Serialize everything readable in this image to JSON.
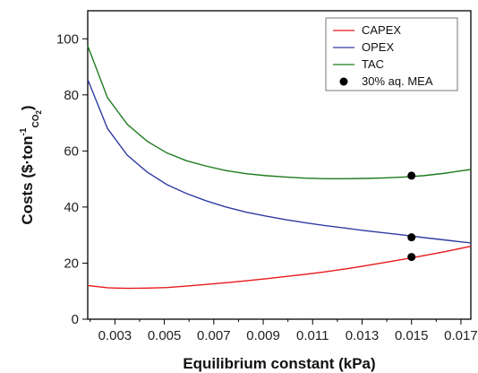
{
  "chart_data": {
    "type": "line",
    "xlabel": "Equilibrium constant (kPa)",
    "ylabel": "Costs ($·ton",
    "ylabel_sup": "-1",
    "ylabel_sub_main": "CO",
    "ylabel_sub_2": "2",
    "ylabel_close": ")",
    "xlim": [
      0.0019,
      0.0174
    ],
    "ylim": [
      0,
      110
    ],
    "xticks": [
      0.003,
      0.005,
      0.007,
      0.009,
      0.011,
      0.013,
      0.015,
      0.017
    ],
    "xtick_labels": [
      "0.003",
      "0.005",
      "0.007",
      "0.009",
      "0.011",
      "0.013",
      "0.015",
      "0.017"
    ],
    "yticks": [
      0,
      20,
      40,
      60,
      80,
      100
    ],
    "ytick_labels": [
      "0",
      "20",
      "40",
      "60",
      "80",
      "100"
    ],
    "grid": false,
    "legend_position": "top-right",
    "series": [
      {
        "name": "CAPEX",
        "color": "#e8191b",
        "x": [
          0.0019,
          0.0027,
          0.0035,
          0.0043,
          0.0051,
          0.0059,
          0.0067,
          0.0075,
          0.0083,
          0.0091,
          0.0099,
          0.0107,
          0.0115,
          0.0123,
          0.0131,
          0.0139,
          0.0147,
          0.0155,
          0.0163,
          0.0174
        ],
        "y": [
          12.0,
          11.2,
          11.0,
          11.1,
          11.3,
          11.8,
          12.4,
          13.0,
          13.7,
          14.4,
          15.2,
          16.0,
          16.9,
          17.9,
          19.0,
          20.2,
          21.4,
          22.7,
          24.0,
          26.0
        ]
      },
      {
        "name": "OPEX",
        "color": "#2f3ca3",
        "x": [
          0.0019,
          0.0027,
          0.0035,
          0.0043,
          0.0051,
          0.0059,
          0.0067,
          0.0075,
          0.0083,
          0.0091,
          0.0099,
          0.0107,
          0.0115,
          0.0123,
          0.0131,
          0.0139,
          0.0147,
          0.0155,
          0.0163,
          0.0174
        ],
        "y": [
          85.5,
          68.0,
          58.5,
          52.5,
          48.0,
          44.8,
          42.2,
          40.0,
          38.2,
          36.8,
          35.5,
          34.4,
          33.4,
          32.5,
          31.6,
          30.8,
          30.0,
          29.1,
          28.3,
          27.2
        ]
      },
      {
        "name": "TAC",
        "color": "#1e7a1e",
        "x": [
          0.0019,
          0.0027,
          0.0035,
          0.0043,
          0.0051,
          0.0059,
          0.0067,
          0.0075,
          0.0083,
          0.0091,
          0.0099,
          0.0107,
          0.0115,
          0.0123,
          0.0131,
          0.0139,
          0.0147,
          0.0155,
          0.0163,
          0.0174
        ],
        "y": [
          97.5,
          79.0,
          69.5,
          63.5,
          59.3,
          56.5,
          54.6,
          53.0,
          51.9,
          51.2,
          50.7,
          50.3,
          50.1,
          50.1,
          50.2,
          50.4,
          50.7,
          51.2,
          52.0,
          53.4
        ]
      }
    ],
    "markers": {
      "name": "30% aq. MEA",
      "color": "#000000",
      "points": [
        {
          "x": 0.015,
          "y": 51.2
        },
        {
          "x": 0.015,
          "y": 29.2
        },
        {
          "x": 0.015,
          "y": 22.2
        }
      ]
    }
  }
}
